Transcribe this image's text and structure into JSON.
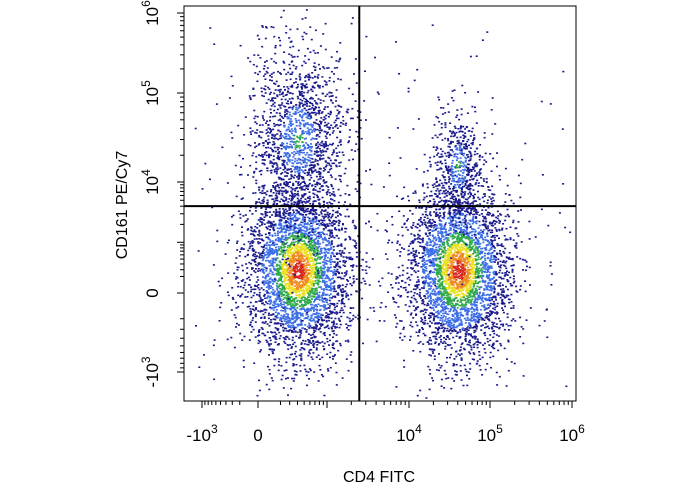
{
  "chart_data": {
    "type": "scatter",
    "subtype": "flow-cytometry-density-dot-plot",
    "xlabel": "CD4 FITC",
    "ylabel": "CD161 PE/Cy7",
    "x_scale": "biexponential",
    "y_scale": "biexponential",
    "xlim": [
      -2000,
      1200000
    ],
    "ylim": [
      -2000,
      1200000
    ],
    "x_ticks": [
      {
        "value": -1000,
        "base": "-10",
        "exp": "3"
      },
      {
        "value": 0,
        "base": "0",
        "exp": ""
      },
      {
        "value": 10000,
        "base": "10",
        "exp": "4"
      },
      {
        "value": 100000,
        "base": "10",
        "exp": "5"
      },
      {
        "value": 1000000,
        "base": "10",
        "exp": "6"
      }
    ],
    "y_ticks": [
      {
        "value": -1000,
        "base": "-10",
        "exp": "3"
      },
      {
        "value": 0,
        "base": "0",
        "exp": ""
      },
      {
        "value": 10000,
        "base": "10",
        "exp": "4"
      },
      {
        "value": 100000,
        "base": "10",
        "exp": "5"
      },
      {
        "value": 1000000,
        "base": "10",
        "exp": "6"
      }
    ],
    "quadrant_gates": {
      "x": 2500,
      "y": 4000
    },
    "populations": [
      {
        "cd4": 400,
        "cd161": 300,
        "density": "high"
      },
      {
        "cd4": 400,
        "cd161": 30000,
        "density": "medium"
      },
      {
        "cd4": 40000,
        "cd161": 300,
        "density": "high"
      },
      {
        "cd4": 40000,
        "cd161": 15000,
        "density": "low"
      }
    ],
    "density_colors": [
      "#1a1a8c",
      "#3c6ee6",
      "#2faa4a",
      "#e8e020",
      "#f08a1e",
      "#d8281e"
    ],
    "grid": false,
    "legend": "none"
  }
}
